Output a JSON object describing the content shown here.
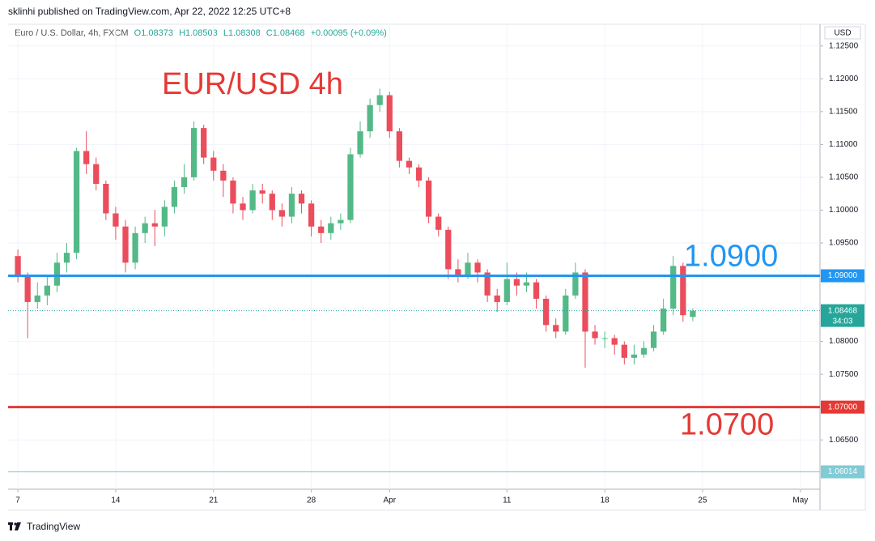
{
  "chart_data": {
    "type": "candlestick",
    "header": "sklinhi published on TradingView.com, Apr 22, 2022 12:25 UTC+8",
    "symbol": "Euro / U.S. Dollar, 4h, FXCM",
    "legend": [
      "O1.08373",
      "H1.08503",
      "L1.08308",
      "C1.08468",
      "+0.00095 (+0.09%)"
    ],
    "currency": "USD",
    "title": "EUR/USD 4h",
    "brand": "TradingView",
    "up_color": "#53b987",
    "down_color": "#eb4d5c",
    "grid": true,
    "xlim": [
      -0.5,
      41
    ],
    "ylim": [
      1.0575,
      1.1283
    ],
    "xticks": [
      {
        "value": 0,
        "label": "7"
      },
      {
        "value": 5,
        "label": "14"
      },
      {
        "value": 10,
        "label": "21"
      },
      {
        "value": 15,
        "label": "28"
      },
      {
        "value": 19,
        "label": "Apr"
      },
      {
        "value": 25,
        "label": "11"
      },
      {
        "value": 30,
        "label": "18"
      },
      {
        "value": 35,
        "label": "25"
      },
      {
        "value": 40,
        "label": "May"
      }
    ],
    "yticks": [
      {
        "value": 1.065,
        "label": "1.06500"
      },
      {
        "value": 1.07,
        "label": "1.07000"
      },
      {
        "value": 1.075,
        "label": "1.07500"
      },
      {
        "value": 1.08,
        "label": "1.08000"
      },
      {
        "value": 1.085,
        "label": "1.08500"
      },
      {
        "value": 1.09,
        "label": "1.09000"
      },
      {
        "value": 1.095,
        "label": "1.09500"
      },
      {
        "value": 1.1,
        "label": "1.10000"
      },
      {
        "value": 1.105,
        "label": "1.10500"
      },
      {
        "value": 1.11,
        "label": "1.11000"
      },
      {
        "value": 1.115,
        "label": "1.11500"
      },
      {
        "value": 1.12,
        "label": "1.12000"
      },
      {
        "value": 1.125,
        "label": "1.12500"
      }
    ],
    "x": [
      0,
      0.5,
      1,
      1.5,
      2,
      2.5,
      3,
      3.5,
      4,
      4.5,
      5,
      5.5,
      6,
      6.5,
      7,
      7.5,
      8,
      8.5,
      9,
      9.5,
      10,
      10.5,
      11,
      11.5,
      12,
      12.5,
      13,
      13.5,
      14,
      14.5,
      15,
      15.5,
      16,
      16.5,
      17,
      17.5,
      18,
      18.5,
      19,
      19.5,
      20,
      20.5,
      21,
      21.5,
      22,
      22.5,
      23,
      23.5,
      24,
      24.5,
      25,
      25.5,
      26,
      26.5,
      27,
      27.5,
      28,
      28.5,
      29,
      29.5,
      30,
      30.5,
      31,
      31.5,
      32,
      32.5,
      33,
      33.5,
      34,
      34.5
    ],
    "open": [
      1.093,
      1.09,
      1.086,
      1.087,
      1.0885,
      1.092,
      1.0935,
      1.109,
      1.107,
      1.104,
      1.0995,
      1.0975,
      1.092,
      1.0965,
      1.098,
      1.0975,
      1.1005,
      1.1035,
      1.105,
      1.1125,
      1.108,
      1.106,
      1.1045,
      1.101,
      1.1,
      1.103,
      1.1025,
      1.1,
      1.099,
      1.1025,
      1.101,
      1.0975,
      1.0965,
      1.098,
      1.0985,
      1.1085,
      1.112,
      1.116,
      1.1175,
      1.112,
      1.1075,
      1.1065,
      1.1045,
      1.099,
      1.097,
      1.091,
      1.09,
      1.092,
      1.0905,
      1.087,
      1.086,
      1.0895,
      1.0885,
      1.089,
      1.0865,
      1.0825,
      1.0815,
      1.087,
      1.0905,
      1.0815,
      1.0805,
      1.0805,
      1.0795,
      1.0775,
      1.078,
      1.079,
      1.0815,
      1.085,
      1.0915,
      1.08373
    ],
    "high": [
      1.094,
      1.0905,
      1.089,
      1.09,
      1.0935,
      1.095,
      1.1095,
      1.112,
      1.108,
      1.1045,
      1.1005,
      1.0985,
      1.0975,
      1.099,
      1.1,
      1.1015,
      1.1045,
      1.107,
      1.1135,
      1.113,
      1.109,
      1.107,
      1.105,
      1.102,
      1.104,
      1.104,
      1.103,
      1.101,
      1.1035,
      1.103,
      1.1015,
      1.0985,
      1.099,
      1.0995,
      1.1095,
      1.1135,
      1.117,
      1.1185,
      1.118,
      1.1125,
      1.108,
      1.107,
      1.105,
      1.0995,
      1.0975,
      1.0925,
      1.0935,
      1.0925,
      1.091,
      1.088,
      1.092,
      1.0905,
      1.0905,
      1.0895,
      1.087,
      1.0835,
      1.088,
      1.092,
      1.091,
      1.0825,
      1.0815,
      1.081,
      1.08,
      1.0795,
      1.08,
      1.0825,
      1.0865,
      1.093,
      1.092,
      1.08503
    ],
    "low": [
      1.089,
      1.0805,
      1.085,
      1.0855,
      1.0875,
      1.0905,
      1.0925,
      1.1055,
      1.103,
      1.0985,
      1.0955,
      1.0905,
      1.091,
      1.095,
      1.0945,
      1.096,
      1.0995,
      1.1025,
      1.1045,
      1.107,
      1.1045,
      1.102,
      1.0995,
      1.0985,
      1.0995,
      1.101,
      1.0985,
      1.0975,
      1.098,
      1.0995,
      1.096,
      1.095,
      1.0955,
      1.097,
      1.098,
      1.108,
      1.111,
      1.115,
      1.111,
      1.1065,
      1.1055,
      1.1035,
      1.098,
      1.096,
      1.0895,
      1.089,
      1.0895,
      1.089,
      1.086,
      1.0845,
      1.0855,
      1.087,
      1.0875,
      1.085,
      1.0815,
      1.0805,
      1.081,
      1.0865,
      1.076,
      1.0795,
      1.079,
      1.078,
      1.0765,
      1.0765,
      1.0775,
      1.0785,
      1.081,
      1.084,
      1.083,
      1.08308
    ],
    "close": [
      1.09,
      1.086,
      1.087,
      1.0885,
      1.092,
      1.0935,
      1.109,
      1.107,
      1.104,
      1.0995,
      1.0975,
      1.092,
      1.0965,
      1.098,
      1.0975,
      1.1005,
      1.1035,
      1.105,
      1.1125,
      1.108,
      1.106,
      1.1045,
      1.101,
      1.1,
      1.103,
      1.1025,
      1.1,
      1.099,
      1.1025,
      1.101,
      1.0975,
      1.0965,
      1.098,
      1.0985,
      1.1085,
      1.112,
      1.116,
      1.1175,
      1.112,
      1.1075,
      1.1065,
      1.1045,
      1.099,
      1.097,
      1.091,
      1.09,
      1.092,
      1.0905,
      1.087,
      1.086,
      1.0895,
      1.0885,
      1.089,
      1.0865,
      1.0825,
      1.0815,
      1.087,
      1.0905,
      1.0815,
      1.0805,
      1.0805,
      1.0795,
      1.0775,
      1.078,
      1.079,
      1.0815,
      1.085,
      1.0915,
      1.084,
      1.08468
    ],
    "hlines": [
      {
        "value": 1.09,
        "label": "1.09000",
        "annotation": "1.0900",
        "color": "#2196f3",
        "width": 3
      },
      {
        "value": 1.07,
        "label": "1.07000",
        "annotation": "1.0700",
        "color": "#e53935",
        "width": 3
      },
      {
        "value": 1.06014,
        "label": "1.06014",
        "color": "#80cbd6",
        "width": 1
      }
    ],
    "last_price": {
      "value": 1.08468,
      "label": "1.08468",
      "countdown": "34:03",
      "color": "#26a69a"
    }
  }
}
